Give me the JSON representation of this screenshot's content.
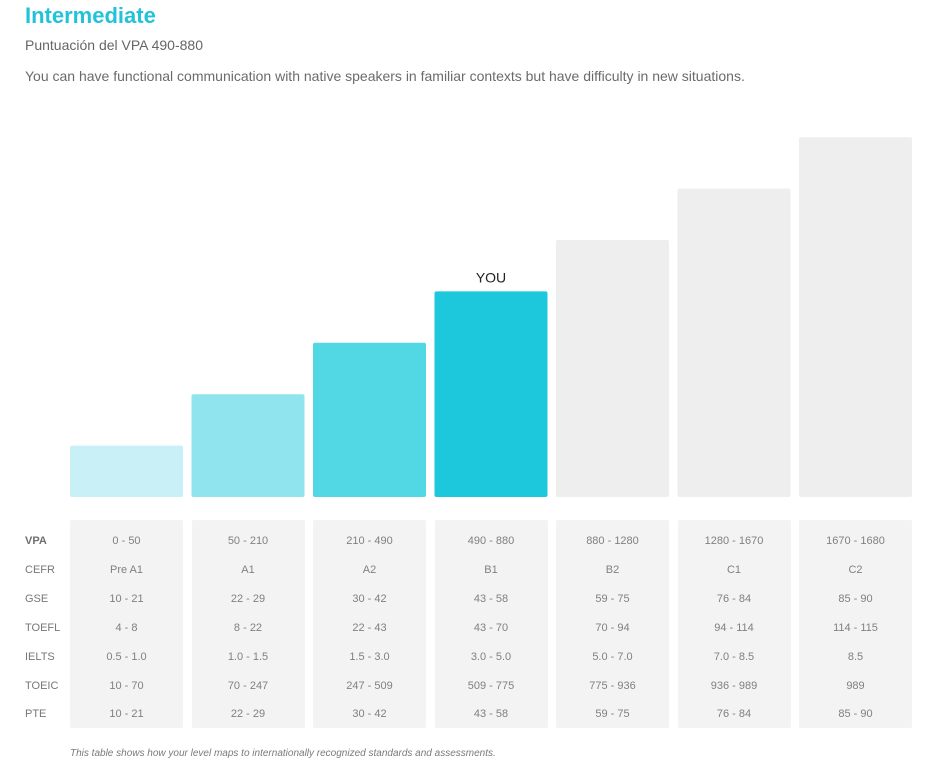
{
  "header": {
    "title": "Intermediate",
    "subtitle": "Puntuación del VPA 490-880",
    "description": "You can have functional communication with native speakers in familiar contexts but have difficulty in new situations."
  },
  "chart_data": {
    "type": "bar",
    "categories": [
      "Pre A1",
      "A1",
      "A2",
      "B1",
      "B2",
      "C1",
      "C2"
    ],
    "values": [
      1,
      2,
      3,
      4,
      5,
      6,
      7
    ],
    "ylim": [
      0,
      7
    ],
    "current_index": 3,
    "current_label": "YOU",
    "bar_colors": [
      "#c8f0f6",
      "#8fe4ee",
      "#52d7e4",
      "#1dc8dc",
      "#eeeeee",
      "#eeeeee",
      "#eeeeee"
    ]
  },
  "table": {
    "row_labels": [
      "VPA",
      "CEFR",
      "GSE",
      "TOEFL",
      "IELTS",
      "TOEIC",
      "PTE"
    ],
    "columns": [
      [
        "0 - 50",
        "Pre A1",
        "10 - 21",
        "4 - 8",
        "0.5 - 1.0",
        "10 - 70",
        "10 - 21"
      ],
      [
        "50 - 210",
        "A1",
        "22 - 29",
        "8 - 22",
        "1.0 - 1.5",
        "70 - 247",
        "22 - 29"
      ],
      [
        "210 - 490",
        "A2",
        "30 - 42",
        "22 - 43",
        "1.5 - 3.0",
        "247 - 509",
        "30 - 42"
      ],
      [
        "490 - 880",
        "B1",
        "43 - 58",
        "43 - 70",
        "3.0 - 5.0",
        "509 - 775",
        "43 - 58"
      ],
      [
        "880 - 1280",
        "B2",
        "59 - 75",
        "70 - 94",
        "5.0 - 7.0",
        "775 - 936",
        "59 - 75"
      ],
      [
        "1280 - 1670",
        "C1",
        "76 - 84",
        "94 - 114",
        "7.0 - 8.5",
        "936 - 989",
        "76 - 84"
      ],
      [
        "1670 - 1680",
        "C2",
        "85 - 90",
        "114 - 115",
        "8.5",
        "989",
        "85 - 90"
      ]
    ]
  },
  "footnote": "This table shows how your level maps to internationally recognized standards and assessments."
}
